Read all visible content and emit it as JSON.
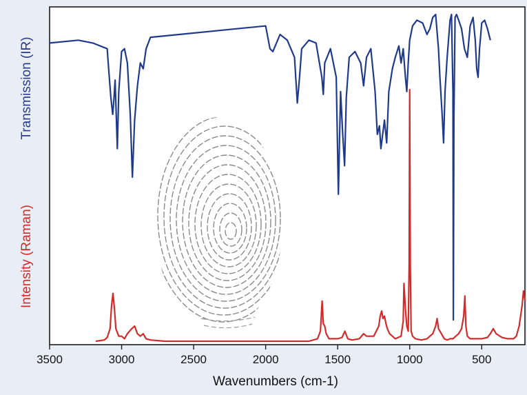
{
  "chart_data": {
    "type": "line",
    "xlabel": "Wavenumbers  (cm-1)",
    "xlim": [
      3500,
      200
    ],
    "x_ticks": [
      3500,
      3000,
      2500,
      2000,
      1500,
      1000,
      500
    ],
    "x_tick_labels": [
      "3500",
      "3000",
      "2500",
      "2000",
      "1500",
      "1000",
      "500"
    ],
    "ylabel_top": "Transmission (IR)",
    "ylabel_bottom": "Intensity (Raman)",
    "grid": false,
    "legend": "none",
    "inset": "fingerprint image in the center of the plot",
    "series": [
      {
        "color": "#1f3a8c",
        "scale": "transmission (0 = baseline, 1 = strongest absorption)",
        "x": [
          3500,
          3300,
          3200,
          3100,
          3090,
          3075,
          3062,
          3055,
          3045,
          3030,
          3020,
          3000,
          2980,
          2960,
          2940,
          2925,
          2910,
          2890,
          2870,
          2850,
          2830,
          2800,
          2600,
          2200,
          2000,
          1970,
          1950,
          1900,
          1850,
          1800,
          1780,
          1765,
          1750,
          1700,
          1650,
          1610,
          1600,
          1590,
          1550,
          1510,
          1495,
          1480,
          1465,
          1452,
          1440,
          1420,
          1380,
          1340,
          1320,
          1300,
          1270,
          1240,
          1225,
          1210,
          1200,
          1185,
          1175,
          1160,
          1145,
          1120,
          1100,
          1075,
          1060,
          1045,
          1030,
          1020,
          1010,
          1000,
          980,
          950,
          910,
          880,
          860,
          840,
          820,
          800,
          790,
          775,
          765,
          755,
          740,
          720,
          710,
          700,
          697,
          693,
          685,
          675,
          660,
          640,
          620,
          600,
          580,
          560,
          545,
          535,
          525,
          515,
          500,
          480,
          460,
          440
        ],
        "y": [
          0.03,
          0.02,
          0.03,
          0.05,
          0.12,
          0.22,
          0.28,
          0.24,
          0.16,
          0.4,
          0.2,
          0.06,
          0.05,
          0.1,
          0.28,
          0.5,
          0.3,
          0.18,
          0.1,
          0.12,
          0.05,
          0.01,
          0.0,
          -0.02,
          -0.03,
          0.05,
          0.06,
          0.0,
          0.02,
          0.08,
          0.24,
          0.15,
          0.05,
          0.02,
          0.03,
          0.15,
          0.21,
          0.1,
          0.05,
          0.15,
          0.56,
          0.2,
          0.35,
          0.46,
          0.22,
          0.08,
          0.06,
          0.1,
          0.18,
          0.08,
          0.05,
          0.2,
          0.35,
          0.32,
          0.4,
          0.34,
          0.3,
          0.38,
          0.2,
          0.12,
          0.08,
          0.04,
          0.1,
          0.05,
          0.15,
          0.2,
          0.1,
          0.02,
          -0.03,
          -0.05,
          -0.04,
          0.0,
          -0.02,
          -0.06,
          -0.07,
          0.05,
          0.15,
          0.28,
          0.38,
          0.2,
          0.08,
          -0.05,
          -0.07,
          0.2,
          1.0,
          0.3,
          -0.06,
          -0.07,
          -0.05,
          -0.02,
          0.05,
          0.08,
          -0.03,
          -0.06,
          0.02,
          0.12,
          0.15,
          0.05,
          -0.04,
          -0.05,
          -0.02,
          0.02
        ]
      },
      {
        "color": "#d42a2a",
        "scale": "relative intensity (0 = baseline, 1 = strongest band)",
        "x": [
          3180,
          3120,
          3100,
          3080,
          3070,
          3060,
          3050,
          3040,
          3020,
          3000,
          2980,
          2960,
          2930,
          2910,
          2890,
          2870,
          2850,
          2830,
          2800,
          2700,
          2500,
          2200,
          2000,
          1800,
          1700,
          1640,
          1620,
          1608,
          1600,
          1590,
          1580,
          1560,
          1500,
          1470,
          1450,
          1430,
          1400,
          1350,
          1320,
          1300,
          1250,
          1215,
          1205,
          1195,
          1185,
          1175,
          1165,
          1155,
          1140,
          1100,
          1060,
          1045,
          1040,
          1030,
          1020,
          1010,
          1004,
          1000,
          996,
          990,
          980,
          960,
          920,
          880,
          860,
          840,
          820,
          810,
          800,
          790,
          780,
          760,
          740,
          720,
          700,
          680,
          660,
          640,
          625,
          617,
          610,
          600,
          580,
          540,
          500,
          460,
          440,
          420,
          400,
          360,
          320,
          280,
          260,
          240,
          220,
          210,
          200
        ],
        "y": [
          0.0,
          0.005,
          0.015,
          0.05,
          0.14,
          0.19,
          0.13,
          0.05,
          0.02,
          0.02,
          0.01,
          0.03,
          0.05,
          0.06,
          0.03,
          0.02,
          0.03,
          0.01,
          0.005,
          0.0,
          0.0,
          0.0,
          0.0,
          0.0,
          0.0,
          0.01,
          0.04,
          0.16,
          0.07,
          0.06,
          0.03,
          0.01,
          0.01,
          0.015,
          0.04,
          0.01,
          0.005,
          0.01,
          0.03,
          0.02,
          0.02,
          0.06,
          0.1,
          0.12,
          0.09,
          0.1,
          0.07,
          0.05,
          0.03,
          0.01,
          0.02,
          0.08,
          0.23,
          0.13,
          0.06,
          0.04,
          0.3,
          1.0,
          0.3,
          0.04,
          0.02,
          0.01,
          0.005,
          0.01,
          0.02,
          0.03,
          0.06,
          0.09,
          0.05,
          0.04,
          0.03,
          0.01,
          0.005,
          0.01,
          0.01,
          0.02,
          0.03,
          0.05,
          0.1,
          0.18,
          0.06,
          0.02,
          0.01,
          0.01,
          0.01,
          0.015,
          0.03,
          0.05,
          0.03,
          0.015,
          0.01,
          0.01,
          0.02,
          0.06,
          0.14,
          0.2,
          0.16
        ]
      }
    ]
  }
}
